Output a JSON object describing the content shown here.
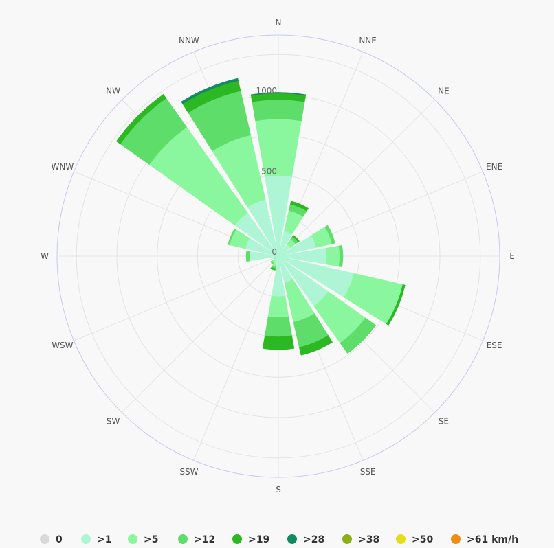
{
  "chart_data": {
    "type": "windrose",
    "directions": [
      "N",
      "NNE",
      "NE",
      "ENE",
      "E",
      "ESE",
      "SE",
      "SSE",
      "S",
      "SSW",
      "SW",
      "WSW",
      "W",
      "WNW",
      "NW",
      "NNW"
    ],
    "radial_ticks": [
      "0",
      "500",
      "1000"
    ],
    "radial_max": 1370,
    "unit": "km/h",
    "series": [
      {
        "name": "0",
        "color": "#d9d9d9",
        "values": [
          0,
          0,
          0,
          0,
          0,
          0,
          0,
          0,
          0,
          0,
          0,
          0,
          0,
          0,
          0,
          0
        ]
      },
      {
        "name": ">1",
        "color": "#aef5d6",
        "values": [
          500,
          160,
          90,
          240,
          300,
          480,
          380,
          170,
          250,
          50,
          30,
          20,
          180,
          210,
          330,
          360
        ]
      },
      {
        "name": ">5",
        "color": "#8af79e",
        "values": [
          350,
          130,
          40,
          100,
          80,
          310,
          280,
          250,
          130,
          20,
          20,
          10,
          0,
          100,
          650,
          410
        ]
      },
      {
        "name": ">12",
        "color": "#5fdd6a",
        "values": [
          120,
          40,
          20,
          20,
          20,
          0,
          80,
          160,
          120,
          10,
          10,
          0,
          20,
          10,
          220,
          280
        ]
      },
      {
        "name": ">19",
        "color": "#2bb822",
        "values": [
          40,
          20,
          10,
          0,
          0,
          15,
          0,
          50,
          80,
          10,
          0,
          0,
          0,
          0,
          30,
          65
        ]
      },
      {
        "name": ">28",
        "color": "#138a64",
        "values": [
          5,
          0,
          0,
          0,
          0,
          0,
          0,
          0,
          0,
          0,
          0,
          0,
          0,
          0,
          0,
          15
        ]
      },
      {
        "name": ">38",
        "color": "#8cae18",
        "values": [
          0,
          0,
          0,
          0,
          0,
          0,
          0,
          0,
          0,
          0,
          0,
          0,
          0,
          0,
          0,
          0
        ]
      },
      {
        "name": ">50",
        "color": "#e5dc1c",
        "values": [
          0,
          0,
          0,
          0,
          0,
          0,
          0,
          0,
          0,
          0,
          0,
          0,
          0,
          0,
          0,
          0
        ]
      },
      {
        "name": ">61 km/h",
        "color": "#f08c12",
        "values": [
          0,
          0,
          0,
          0,
          0,
          0,
          0,
          0,
          0,
          0,
          0,
          0,
          0,
          0,
          0,
          0
        ]
      }
    ]
  },
  "style": {
    "grid_color": "#e3e3e3",
    "outer_ring_color": "#c5c9ee",
    "background": "#f8f8f8"
  }
}
